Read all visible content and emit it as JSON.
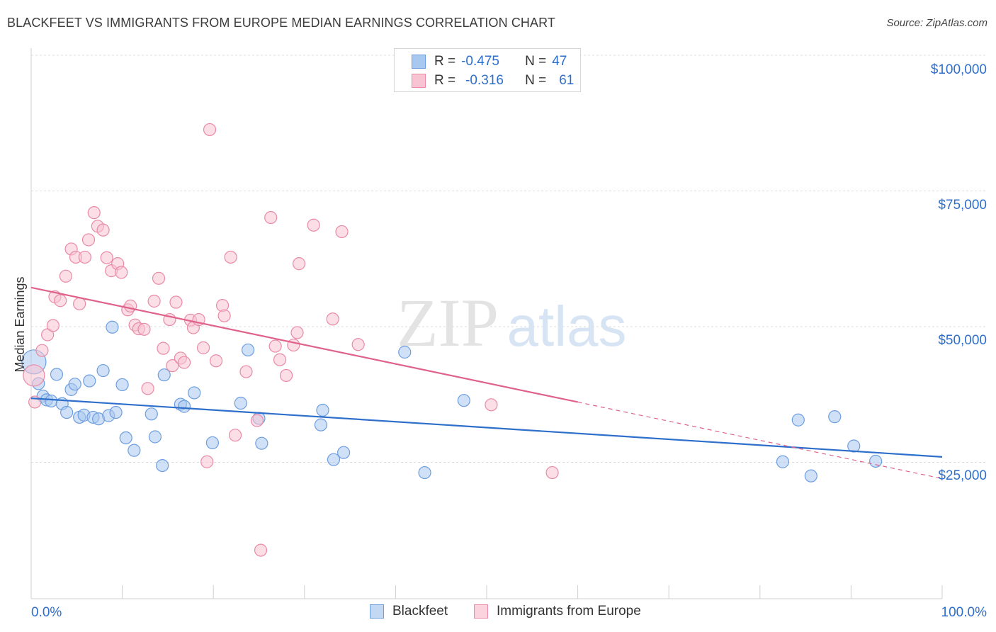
{
  "title": "BLACKFEET VS IMMIGRANTS FROM EUROPE MEDIAN EARNINGS CORRELATION CHART",
  "source": "Source: ZipAtlas.com",
  "watermark": {
    "zip": "ZIP",
    "atlas": "atlas"
  },
  "legend_stats": [
    {
      "r_label": "R =",
      "r_value": "-0.475",
      "n_label": "N =",
      "n_value": "47",
      "color": "#a9c8f0",
      "border": "#6d9ee0"
    },
    {
      "r_label": "R =",
      "r_value": "-0.316",
      "n_label": "N =",
      "n_value": "61",
      "color": "#f8c3d2",
      "border": "#e98aa6"
    }
  ],
  "chart_data": {
    "type": "scatter",
    "title": "BLACKFEET VS IMMIGRANTS FROM EUROPE MEDIAN EARNINGS CORRELATION CHART",
    "xlabel": "",
    "ylabel": "Median Earnings",
    "xlim": [
      0,
      100
    ],
    "ylim": [
      0,
      105000
    ],
    "x_tick_labels": [
      "0.0%",
      "100.0%"
    ],
    "y_ticks": [
      25000,
      50000,
      75000,
      100000
    ],
    "y_tick_labels": [
      "$25,000",
      "$50,000",
      "$75,000",
      "$100,000"
    ],
    "grid": "horizontal dashed",
    "legend_position": "bottom",
    "series": [
      {
        "name": "Blackfeet",
        "color": "#6d9ee0",
        "fill": "#a9c8f0",
        "line_color": "#2e6fcc",
        "trend": {
          "x": [
            0,
            100
          ],
          "y": [
            36800,
            26000
          ]
        },
        "points": [
          [
            0.3,
            43500
          ],
          [
            0.8,
            39500
          ],
          [
            1.3,
            37200
          ],
          [
            1.7,
            36500
          ],
          [
            2.2,
            36300
          ],
          [
            2.8,
            41200
          ],
          [
            3.4,
            35800
          ],
          [
            3.9,
            34200
          ],
          [
            4.4,
            38400
          ],
          [
            4.8,
            39400
          ],
          [
            5.3,
            33300
          ],
          [
            5.8,
            33700
          ],
          [
            6.4,
            40000
          ],
          [
            6.8,
            33300
          ],
          [
            7.4,
            33000
          ],
          [
            7.9,
            41900
          ],
          [
            8.5,
            33600
          ],
          [
            8.9,
            49900
          ],
          [
            9.3,
            34200
          ],
          [
            10.0,
            39300
          ],
          [
            10.4,
            29500
          ],
          [
            11.3,
            27200
          ],
          [
            13.2,
            33900
          ],
          [
            13.6,
            29700
          ],
          [
            14.4,
            24400
          ],
          [
            14.6,
            41100
          ],
          [
            16.4,
            35700
          ],
          [
            16.8,
            35300
          ],
          [
            17.9,
            37800
          ],
          [
            19.9,
            28600
          ],
          [
            23.0,
            35900
          ],
          [
            23.8,
            45700
          ],
          [
            25.0,
            33100
          ],
          [
            25.3,
            28500
          ],
          [
            31.8,
            31900
          ],
          [
            32.0,
            34600
          ],
          [
            33.2,
            25500
          ],
          [
            34.3,
            26800
          ],
          [
            41.0,
            45300
          ],
          [
            43.2,
            23100
          ],
          [
            47.5,
            36400
          ],
          [
            82.5,
            25100
          ],
          [
            84.2,
            32800
          ],
          [
            85.6,
            22500
          ],
          [
            88.2,
            33400
          ],
          [
            90.3,
            28000
          ],
          [
            92.7,
            25200
          ]
        ]
      },
      {
        "name": "Immigrants from Europe",
        "color": "#e98aa6",
        "fill": "#f8c3d2",
        "line_color": "#e0628a",
        "trend": {
          "x": [
            0,
            60
          ],
          "y": [
            57200,
            36100
          ]
        },
        "trend_dashed": {
          "x": [
            60,
            100
          ],
          "y": [
            36100,
            22000
          ]
        },
        "points": [
          [
            0.3,
            41000
          ],
          [
            0.4,
            36100
          ],
          [
            1.2,
            45600
          ],
          [
            1.8,
            48500
          ],
          [
            2.4,
            50200
          ],
          [
            2.6,
            55500
          ],
          [
            3.2,
            54800
          ],
          [
            3.8,
            59300
          ],
          [
            4.4,
            64300
          ],
          [
            4.9,
            62800
          ],
          [
            5.3,
            54200
          ],
          [
            5.9,
            62800
          ],
          [
            6.3,
            66000
          ],
          [
            6.9,
            71000
          ],
          [
            7.3,
            68500
          ],
          [
            7.9,
            67800
          ],
          [
            8.3,
            62700
          ],
          [
            8.8,
            60300
          ],
          [
            9.5,
            61600
          ],
          [
            9.9,
            60000
          ],
          [
            10.6,
            53100
          ],
          [
            10.9,
            53800
          ],
          [
            11.4,
            50300
          ],
          [
            11.8,
            49600
          ],
          [
            12.4,
            49500
          ],
          [
            12.8,
            38600
          ],
          [
            13.5,
            54700
          ],
          [
            14.0,
            58900
          ],
          [
            14.5,
            46000
          ],
          [
            15.2,
            51300
          ],
          [
            15.5,
            42800
          ],
          [
            15.9,
            54500
          ],
          [
            16.4,
            44200
          ],
          [
            16.8,
            43400
          ],
          [
            17.5,
            51200
          ],
          [
            17.8,
            49800
          ],
          [
            18.4,
            51300
          ],
          [
            18.9,
            46100
          ],
          [
            19.3,
            25100
          ],
          [
            19.6,
            86300
          ],
          [
            20.3,
            43700
          ],
          [
            21.0,
            53900
          ],
          [
            21.2,
            52000
          ],
          [
            21.9,
            62800
          ],
          [
            22.4,
            30000
          ],
          [
            23.6,
            41700
          ],
          [
            24.8,
            32700
          ],
          [
            25.2,
            8800
          ],
          [
            26.3,
            70100
          ],
          [
            26.8,
            46400
          ],
          [
            27.3,
            43900
          ],
          [
            28.0,
            41000
          ],
          [
            28.8,
            46600
          ],
          [
            29.2,
            48900
          ],
          [
            29.4,
            61600
          ],
          [
            31.0,
            68700
          ],
          [
            33.1,
            51400
          ],
          [
            34.1,
            67500
          ],
          [
            35.9,
            46700
          ],
          [
            50.5,
            35600
          ],
          [
            57.2,
            23100
          ]
        ]
      }
    ]
  }
}
